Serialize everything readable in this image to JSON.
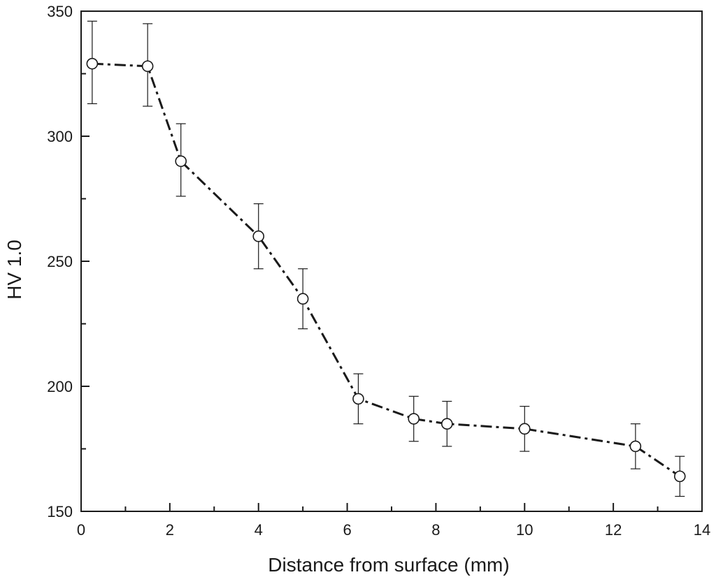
{
  "chart_data": {
    "type": "line",
    "title": "",
    "xlabel": "Distance from surface (mm)",
    "ylabel": "HV 1.0",
    "xlim": [
      0,
      14
    ],
    "ylim": [
      150,
      350
    ],
    "x_ticks": [
      0,
      2,
      4,
      6,
      8,
      10,
      12,
      14
    ],
    "y_ticks": [
      150,
      200,
      250,
      300,
      350
    ],
    "grid": false,
    "legend": "none",
    "line_style": "dash-dot",
    "marker": "open-circle",
    "series": [
      {
        "x": [
          0.25,
          1.5,
          2.25,
          4,
          5,
          6.25,
          7.5,
          8.25,
          10,
          12.5,
          13.5
        ],
        "y": [
          329,
          328,
          290,
          260,
          235,
          195,
          187,
          185,
          183,
          176,
          164
        ],
        "error_low": [
          313,
          312,
          276,
          247,
          223,
          185,
          178,
          176,
          174,
          167,
          156
        ],
        "error_high": [
          346,
          345,
          305,
          273,
          247,
          205,
          196,
          194,
          192,
          185,
          172
        ]
      }
    ],
    "colors": {
      "line": "#1a1a1a",
      "marker_fill": "#ffffff",
      "axis": "#1a1a1a"
    }
  }
}
